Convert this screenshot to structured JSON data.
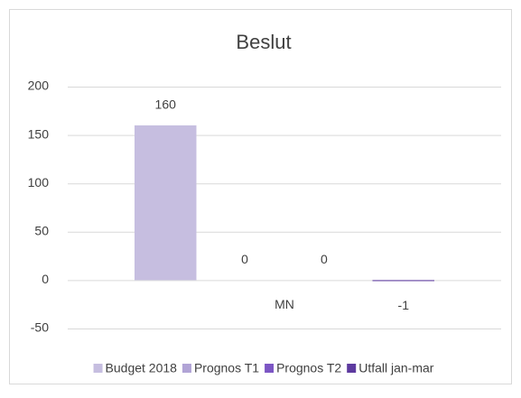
{
  "chart_data": {
    "type": "bar",
    "title": "Beslut",
    "categories": [
      "MN"
    ],
    "series": [
      {
        "name": "Budget 2018",
        "color": "#c6bee0",
        "values": [
          160
        ]
      },
      {
        "name": "Prognos T1",
        "color": "#b1a4d6",
        "values": [
          0
        ]
      },
      {
        "name": "Prognos T2",
        "color": "#7c56c4",
        "values": [
          0
        ]
      },
      {
        "name": "Utfall jan-mar",
        "color": "#5d3a9f",
        "values": [
          -1
        ]
      }
    ],
    "ylim": [
      -50,
      200
    ],
    "yticks": [
      -50,
      0,
      50,
      100,
      150,
      200
    ],
    "grid": true,
    "legend": "bottom"
  }
}
